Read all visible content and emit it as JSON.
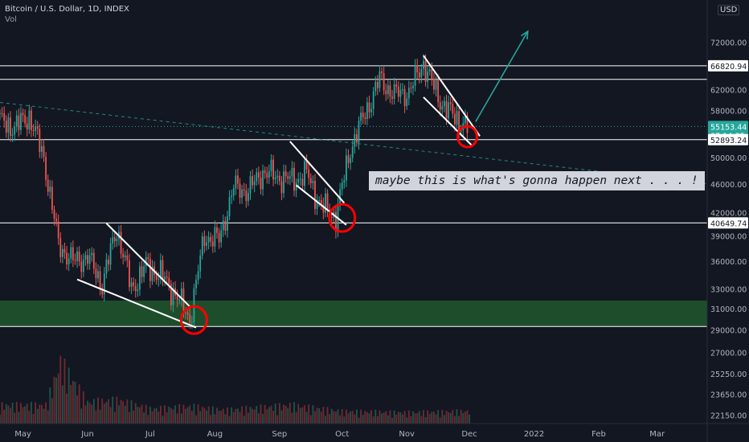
{
  "header": {
    "symbol": "Bitcoin / U.S. Dollar, 1D, INDEX",
    "volume_label": "Vol"
  },
  "currency_badge": "USD",
  "annotation": "maybe this is what's gonna happen next . . . !",
  "colors": {
    "background": "#131722",
    "up_candle": "#26a69a",
    "down_candle": "#ef5350",
    "level_line": "#ffffff",
    "support_zone": "#1e4d2b",
    "circle": "#ff0000",
    "projection_arrow": "#26a69a",
    "trendline": "#26a69a",
    "price_badge": "#26a69a"
  },
  "chart_data": {
    "type": "candlestick",
    "title": "Bitcoin / U.S. Dollar, 1D, INDEX",
    "xlabel": "",
    "ylabel": "",
    "y_scale": "log",
    "ylim": [
      22000,
      80000
    ],
    "x_ticks": [
      "May",
      "Jun",
      "Jul",
      "Aug",
      "Sep",
      "Oct",
      "Nov",
      "Dec",
      "2022",
      "Feb",
      "Mar"
    ],
    "y_ticks": [
      "72000.00",
      "66820.94",
      "62000.00",
      "58000.00",
      "55153.44",
      "52893.24",
      "50000.00",
      "46000.00",
      "42000.00",
      "40649.74",
      "39000.00",
      "36000.00",
      "33000.00",
      "31000.00",
      "29000.00",
      "27000.00",
      "25250.00",
      "23650.00",
      "22150.00"
    ],
    "price_series": [
      {
        "date": "2021-04-20",
        "close": 56000
      },
      {
        "date": "2021-04-27",
        "close": 55000
      },
      {
        "date": "2021-05-04",
        "close": 57000
      },
      {
        "date": "2021-05-11",
        "close": 50000
      },
      {
        "date": "2021-05-18",
        "close": 38000
      },
      {
        "date": "2021-05-25",
        "close": 36000
      },
      {
        "date": "2021-06-01",
        "close": 36500
      },
      {
        "date": "2021-06-08",
        "close": 33500
      },
      {
        "date": "2021-06-15",
        "close": 40000
      },
      {
        "date": "2021-06-22",
        "close": 33000
      },
      {
        "date": "2021-06-29",
        "close": 35500
      },
      {
        "date": "2021-07-06",
        "close": 34500
      },
      {
        "date": "2021-07-13",
        "close": 32500
      },
      {
        "date": "2021-07-20",
        "close": 30000
      },
      {
        "date": "2021-07-27",
        "close": 39000
      },
      {
        "date": "2021-08-03",
        "close": 38500
      },
      {
        "date": "2021-08-10",
        "close": 45500
      },
      {
        "date": "2021-08-17",
        "close": 45000
      },
      {
        "date": "2021-08-24",
        "close": 47800
      },
      {
        "date": "2021-08-31",
        "close": 47000
      },
      {
        "date": "2021-09-07",
        "close": 46500
      },
      {
        "date": "2021-09-14",
        "close": 47500
      },
      {
        "date": "2021-09-21",
        "close": 42800
      },
      {
        "date": "2021-09-28",
        "close": 41500
      },
      {
        "date": "2021-10-05",
        "close": 51500
      },
      {
        "date": "2021-10-12",
        "close": 57500
      },
      {
        "date": "2021-10-19",
        "close": 64000
      },
      {
        "date": "2021-10-26",
        "close": 61000
      },
      {
        "date": "2021-11-02",
        "close": 61500
      },
      {
        "date": "2021-11-09",
        "close": 67500
      },
      {
        "date": "2021-11-16",
        "close": 60500
      },
      {
        "date": "2021-11-23",
        "close": 57000
      },
      {
        "date": "2021-11-30",
        "close": 55153
      }
    ],
    "levels": [
      {
        "label": "66820.94",
        "value": 66820.94
      },
      {
        "label": "",
        "value": 64000
      },
      {
        "label": "52893.24",
        "value": 52893.24
      },
      {
        "label": "40649.74",
        "value": 40649.74
      },
      {
        "label": "",
        "value": 29300
      }
    ],
    "current_price": {
      "value": "55153.44",
      "countdown": "07:14:35"
    },
    "support_zone": [
      29300,
      31800
    ],
    "wedges": [
      {
        "upper": [
          [
            "2021-06-10",
            40600
          ],
          [
            "2021-07-20",
            31200
          ]
        ],
        "lower": [
          [
            "2021-05-27",
            34000
          ],
          [
            "2021-07-23",
            29200
          ]
        ]
      },
      {
        "upper": [
          [
            "2021-09-06",
            52600
          ],
          [
            "2021-10-02",
            43300
          ]
        ],
        "lower": [
          [
            "2021-09-09",
            45800
          ],
          [
            "2021-10-03",
            40400
          ]
        ]
      },
      {
        "upper": [
          [
            "2021-11-09",
            69000
          ],
          [
            "2021-12-06",
            53500
          ]
        ],
        "lower": [
          [
            "2021-11-09",
            60500
          ],
          [
            "2021-12-02",
            52000
          ]
        ]
      }
    ],
    "circles": [
      {
        "date": "2021-07-22",
        "price": 29900
      },
      {
        "date": "2021-10-01",
        "price": 41300
      },
      {
        "date": "2021-11-30",
        "price": 53400
      }
    ],
    "projection": {
      "from": [
        "2021-12-04",
        56000
      ],
      "to": [
        "2021-12-29",
        74500
      ]
    },
    "trendline": {
      "from": [
        "2021-04-20",
        59500
      ],
      "to": [
        "2022-03-25",
        46000
      ]
    },
    "volume": [
      {
        "date": "2021-05-12",
        "value": 300
      },
      {
        "date": "2021-05-19",
        "value": 1000
      },
      {
        "date": "2021-06-01",
        "value": 350
      },
      {
        "date": "2021-06-16",
        "value": 380
      },
      {
        "date": "2021-07-01",
        "value": 240
      },
      {
        "date": "2021-07-21",
        "value": 280
      },
      {
        "date": "2021-08-05",
        "value": 220
      },
      {
        "date": "2021-09-07",
        "value": 300
      },
      {
        "date": "2021-10-01",
        "value": 200
      },
      {
        "date": "2021-11-01",
        "value": 180
      },
      {
        "date": "2021-11-29",
        "value": 200
      }
    ]
  }
}
